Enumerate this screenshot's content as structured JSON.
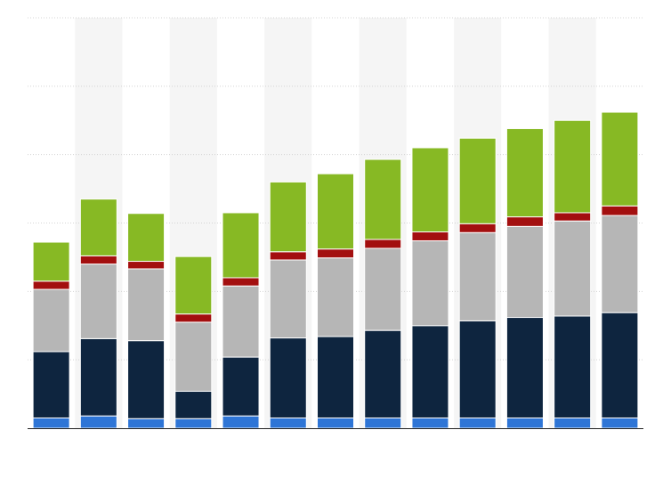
{
  "chart_data": {
    "type": "bar",
    "stacked": true,
    "grid": true,
    "ylim": [
      0,
      600
    ],
    "categories": [
      "",
      "",
      "",
      "",
      "",
      "",
      "",
      "",
      "",
      "",
      "",
      "",
      ""
    ],
    "series": [
      {
        "color": "#2e75d6",
        "values": [
          15,
          18,
          14,
          14,
          18,
          15,
          15,
          15,
          15,
          15,
          15,
          15,
          15
        ]
      },
      {
        "color": "#0e253f",
        "values": [
          97,
          113,
          114,
          40,
          86,
          117,
          119,
          128,
          135,
          142,
          147,
          149,
          154
        ]
      },
      {
        "color": "#b6b6b6",
        "values": [
          91,
          109,
          105,
          101,
          104,
          114,
          115,
          120,
          124,
          129,
          133,
          139,
          142
        ]
      },
      {
        "color": "#a30f0f",
        "values": [
          12,
          12,
          11,
          12,
          12,
          12,
          13,
          13,
          13,
          13,
          14,
          12,
          14
        ]
      },
      {
        "color": "#87b924",
        "values": [
          57,
          83,
          70,
          84,
          95,
          102,
          110,
          117,
          123,
          125,
          129,
          135,
          137
        ]
      }
    ]
  }
}
